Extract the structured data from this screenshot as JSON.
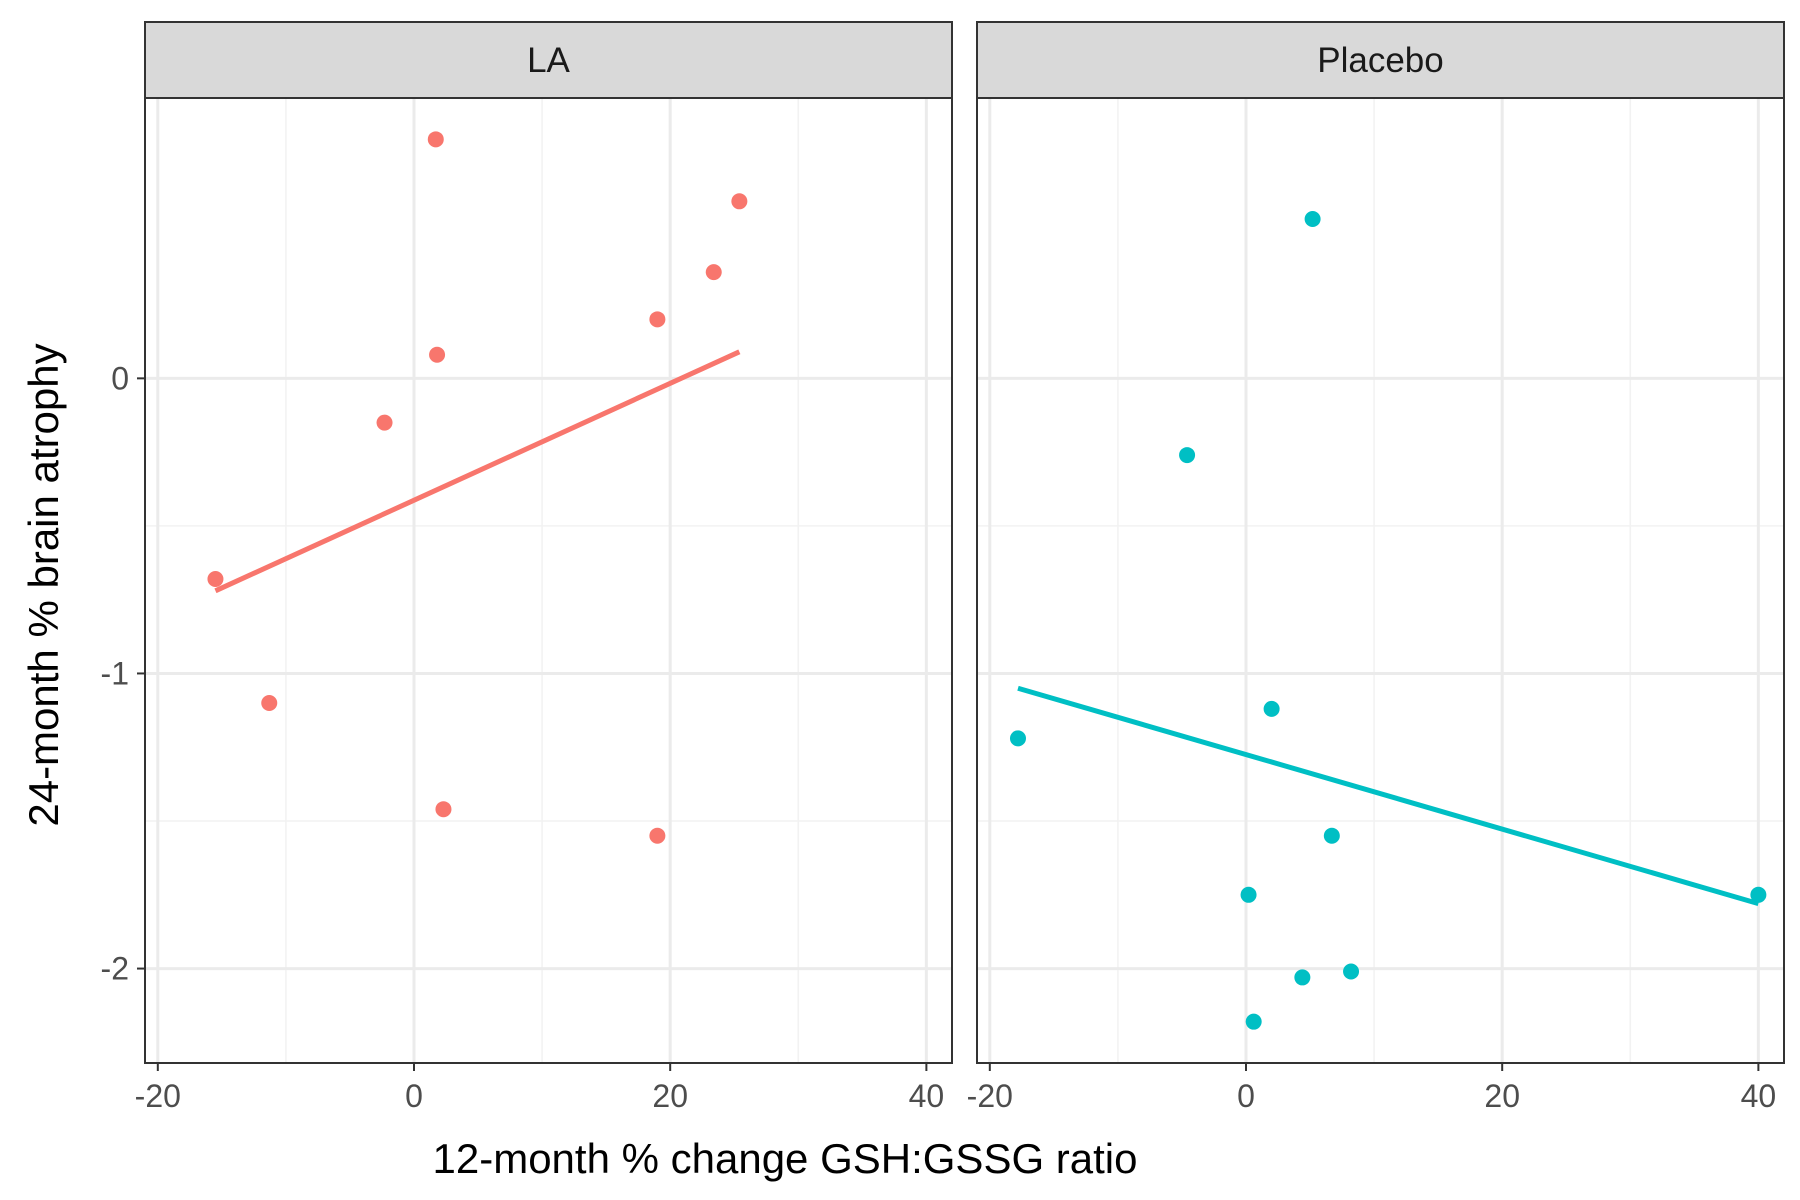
{
  "chart_data": {
    "type": "scatter",
    "xlabel": "12-month % change GSH:GSSG ratio",
    "ylabel": "24-month % brain atrophy",
    "xlim": [
      -21,
      42
    ],
    "ylim": [
      -2.32,
      0.95
    ],
    "x_ticks": [
      -20,
      0,
      20,
      40
    ],
    "x_tick_labels": [
      "-20",
      "0",
      "20",
      "40"
    ],
    "y_ticks": [
      -2,
      -1,
      0
    ],
    "y_tick_labels": [
      "-2",
      "-1",
      "0"
    ],
    "grid": true,
    "legend": "none",
    "facets": [
      {
        "label": "LA",
        "color": "#F8766D",
        "points": [
          {
            "x": -15.5,
            "y": -0.68
          },
          {
            "x": -11.3,
            "y": -1.1
          },
          {
            "x": -2.3,
            "y": -0.15
          },
          {
            "x": 1.7,
            "y": 0.81
          },
          {
            "x": 1.8,
            "y": 0.08
          },
          {
            "x": 2.3,
            "y": -1.46
          },
          {
            "x": 19.0,
            "y": 0.2
          },
          {
            "x": 19.0,
            "y": -1.55
          },
          {
            "x": 23.4,
            "y": 0.36
          },
          {
            "x": 25.4,
            "y": 0.6
          }
        ],
        "trend": {
          "x": [
            -15.5,
            25.4
          ],
          "y": [
            -0.72,
            0.09
          ]
        }
      },
      {
        "label": "Placebo",
        "color": "#00BFC4",
        "points": [
          {
            "x": -17.8,
            "y": -1.22
          },
          {
            "x": -4.6,
            "y": -0.26
          },
          {
            "x": 0.2,
            "y": -1.75
          },
          {
            "x": 0.6,
            "y": -2.18
          },
          {
            "x": 2.0,
            "y": -1.12
          },
          {
            "x": 4.4,
            "y": -2.03
          },
          {
            "x": 5.2,
            "y": 0.54
          },
          {
            "x": 6.7,
            "y": -1.55
          },
          {
            "x": 8.2,
            "y": -2.01
          },
          {
            "x": 40.0,
            "y": -1.75
          }
        ],
        "trend": {
          "x": [
            -17.8,
            40.0
          ],
          "y": [
            -1.05,
            -1.78
          ]
        }
      }
    ]
  }
}
